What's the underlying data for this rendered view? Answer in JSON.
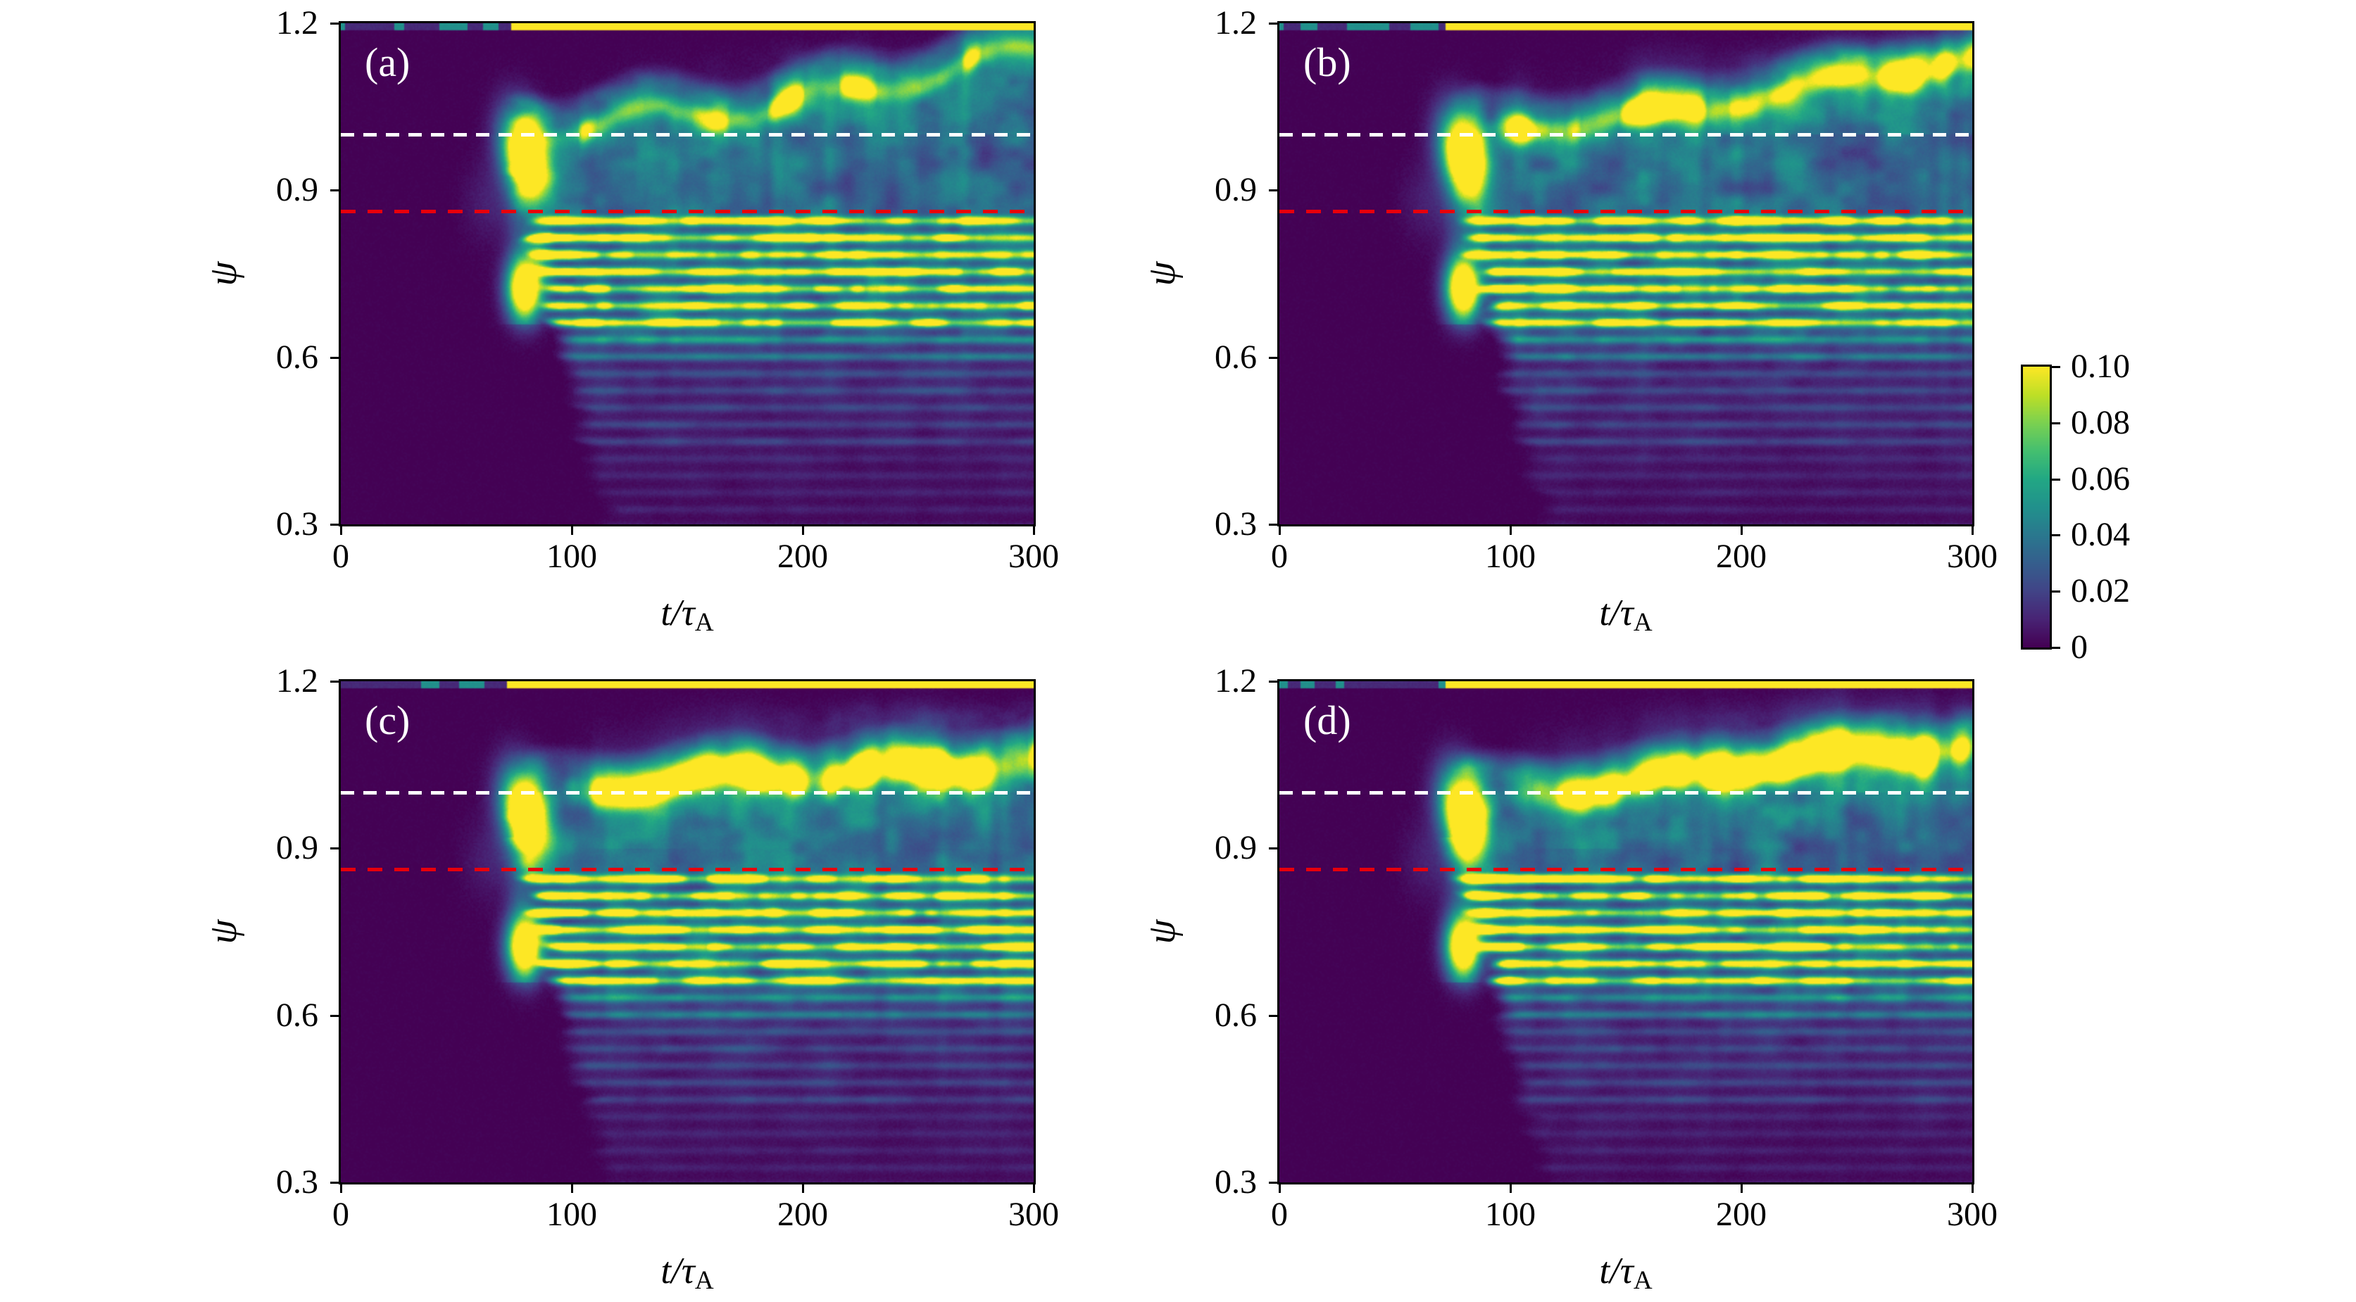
{
  "figure": {
    "background": "#ffffff"
  },
  "chart_data": {
    "type": "heatmap",
    "colormap": "viridis",
    "clim": [
      0,
      0.1
    ],
    "x": {
      "label_main": "t/τ",
      "label_sub": "A",
      "range": [
        0,
        300
      ],
      "ticks": [
        0,
        100,
        200,
        300
      ],
      "tick_labels": [
        "0",
        "100",
        "200",
        "300"
      ]
    },
    "y": {
      "label": "ψ",
      "range": [
        0.3,
        1.2
      ],
      "ticks": [
        1.2,
        0.9,
        0.6,
        0.3
      ],
      "tick_labels": [
        "1.2",
        "0.9",
        "0.6",
        "0.3"
      ]
    },
    "colorbar": {
      "tick_values": [
        0.1,
        0.08,
        0.06,
        0.04,
        0.02,
        0
      ],
      "tick_labels": [
        "0.10",
        "0.08",
        "0.06",
        "0.04",
        "0.02",
        "0"
      ]
    },
    "annotations": {
      "white_dashed_psi": 1.0,
      "white_color": "#ffffff",
      "red_dashed_psi": 0.862,
      "red_color": "#e8000b"
    },
    "colormap_stops": [
      [
        0.0,
        "#440154"
      ],
      [
        0.1,
        "#482475"
      ],
      [
        0.2,
        "#414487"
      ],
      [
        0.3,
        "#355f8d"
      ],
      [
        0.4,
        "#2a788e"
      ],
      [
        0.5,
        "#21918c"
      ],
      [
        0.6,
        "#22a884"
      ],
      [
        0.7,
        "#44bf70"
      ],
      [
        0.8,
        "#7ad151"
      ],
      [
        0.9,
        "#bddf26"
      ],
      [
        1.0,
        "#fde725"
      ]
    ],
    "panels": [
      {
        "label": "(a)",
        "description": "Quiescent (dark) until t≈70; strong burst at t≈80 near ψ≈0.92–1.02; fragmented rising chirp band from ψ≈1.0 at t≈90 to ψ≈1.13 at t=300; yellow mode stripes at ψ≈0.66–0.85; faint stripes down to ψ≈0.45; saturated edge line at ψ≈1.2 for t≳75.",
        "render": {
          "seed": 3,
          "upper": 0.8,
          "topT": 74,
          "band": {
            "t0": 90,
            "p0": 1.0,
            "slope": 0.00064,
            "wiggle": 0.02,
            "frag": 0.45,
            "amp": 1.35,
            "w": 0.015
          },
          "b1": {
            "t": 80,
            "psi": 0.965,
            "amp": 1.5
          },
          "b2": {
            "t": 80,
            "psi": 0.725,
            "amp": 1.35
          }
        }
      },
      {
        "label": "(b)",
        "description": "Burst at t≈80 near ψ≈0.92–1.02; bright continuous chirp band rising to ψ≈1.12 by t≈230 then fragmenting; broad teal turbulence up to ψ≈1.15; stripes below red line; saturated edge line at ψ≈1.2 for t≳72.",
        "render": {
          "seed": 7,
          "upper": 1.0,
          "topT": 72,
          "band": {
            "t0": 95,
            "p0": 1.0,
            "slope": 0.00062,
            "wiggle": 0.012,
            "frag": 0.3,
            "amp": 1.5,
            "w": 0.017
          },
          "b1": {
            "t": 80,
            "psi": 0.965,
            "amp": 1.5
          },
          "b2": {
            "t": 80,
            "psi": 0.725,
            "amp": 1.35
          }
        }
      },
      {
        "label": "(c)",
        "description": "Burst at t≈80; nearly flat bright band slowly rising from ψ≈1.0 to ψ≈1.06 by t≈250, zig-zagging afterwards; strong stripes at ψ≈0.66–0.85; saturated edge line at ψ≈1.2 for t≳72.",
        "render": {
          "seed": 13,
          "upper": 0.9,
          "topT": 72,
          "band": {
            "t0": 100,
            "p0": 1.0,
            "slope": 0.00032,
            "wiggle": 0.014,
            "frag": 0.25,
            "amp": 1.5,
            "w": 0.019
          },
          "b1": {
            "t": 80,
            "psi": 0.965,
            "amp": 1.5
          },
          "b2": {
            "t": 80,
            "psi": 0.725,
            "amp": 1.35
          }
        }
      },
      {
        "label": "(d)",
        "description": "Burst at t≈80; thick bright band rising steadily from ψ≈1.0 to ψ≈1.08 at t=300; strong stripes below the red line; saturated edge line at ψ≈1.2 for t≳72.",
        "render": {
          "seed": 19,
          "upper": 0.9,
          "topT": 72,
          "band": {
            "t0": 100,
            "p0": 1.0,
            "slope": 0.00042,
            "wiggle": 0.01,
            "frag": 0.2,
            "amp": 1.5,
            "w": 0.02
          },
          "b1": {
            "t": 80,
            "psi": 0.965,
            "amp": 1.5
          },
          "b2": {
            "t": 80,
            "psi": 0.725,
            "amp": 1.35
          }
        }
      }
    ]
  }
}
